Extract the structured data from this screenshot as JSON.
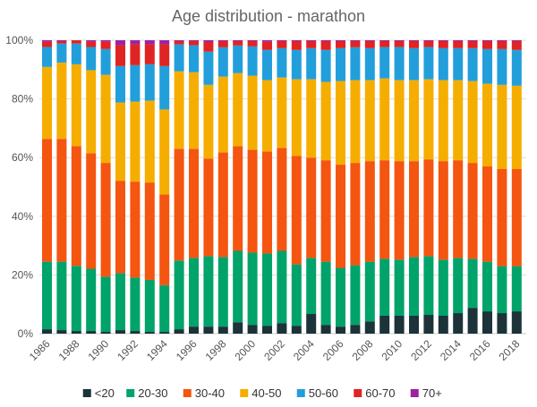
{
  "chart_data": {
    "type": "bar",
    "stacked": true,
    "title": "Age distribution - marathon",
    "xlabel": "",
    "ylabel": "",
    "ylim": [
      0,
      100
    ],
    "y_ticks": [
      "0%",
      "20%",
      "40%",
      "60%",
      "80%",
      "100%"
    ],
    "x_tick_labels": [
      "1986",
      "1988",
      "1990",
      "1992",
      "1994",
      "1996",
      "1998",
      "2000",
      "2002",
      "2004",
      "2006",
      "2008",
      "2010",
      "2012",
      "2014",
      "2016",
      "2018"
    ],
    "grid": "horizontal",
    "legend_position": "bottom",
    "categories": [
      "1986",
      "1987",
      "1988",
      "1989",
      "1990",
      "1991",
      "1992",
      "1993",
      "1994",
      "1995",
      "1996",
      "1997",
      "1998",
      "1999",
      "2000",
      "2001",
      "2002",
      "2003",
      "2004",
      "2005",
      "2006",
      "2007",
      "2008",
      "2009",
      "2010",
      "2011",
      "2012",
      "2013",
      "2014",
      "2015",
      "2016",
      "2017",
      "2018"
    ],
    "series": [
      {
        "name": "<20",
        "color": "#1b3339",
        "values": [
          1.5,
          1.2,
          0.9,
          0.9,
          0.6,
          1.2,
          0.9,
          0.6,
          0.6,
          1.5,
          2.4,
          2.4,
          2.4,
          3.9,
          3.0,
          2.7,
          3.6,
          2.7,
          6.7,
          3.0,
          2.4,
          3.0,
          4.2,
          6.1,
          6.1,
          6.1,
          6.4,
          6.1,
          7.0,
          8.8,
          7.6,
          7.0,
          7.6
        ]
      },
      {
        "name": "20-30",
        "color": "#00a36a",
        "values": [
          23.0,
          23.3,
          22.2,
          21.2,
          18.8,
          19.4,
          18.2,
          17.7,
          15.9,
          23.4,
          23.4,
          24.0,
          23.7,
          24.3,
          24.6,
          24.6,
          24.6,
          20.9,
          19.1,
          21.5,
          20.0,
          20.3,
          20.3,
          19.4,
          19.1,
          20.0,
          20.0,
          19.1,
          18.8,
          16.7,
          16.9,
          16.0,
          15.4
        ]
      },
      {
        "name": "30-40",
        "color": "#f45511",
        "values": [
          41.9,
          41.9,
          40.8,
          39.4,
          38.8,
          31.5,
          32.7,
          33.2,
          30.9,
          38.1,
          37.2,
          33.3,
          35.7,
          35.7,
          35.1,
          34.8,
          35.1,
          37.0,
          34.2,
          34.6,
          35.2,
          34.9,
          34.3,
          33.6,
          33.6,
          32.7,
          33.0,
          33.6,
          33.3,
          32.7,
          32.5,
          33.1,
          33.1
        ]
      },
      {
        "name": "40-50",
        "color": "#f5ae00",
        "values": [
          24.5,
          26.0,
          27.9,
          28.3,
          30.0,
          26.7,
          27.3,
          27.9,
          29.0,
          26.4,
          26.1,
          25.1,
          25.8,
          24.9,
          25.2,
          24.3,
          24.0,
          26.1,
          26.7,
          26.7,
          28.5,
          28.2,
          27.6,
          27.9,
          27.6,
          27.6,
          27.3,
          27.6,
          27.3,
          27.9,
          28.2,
          28.7,
          28.4
        ]
      },
      {
        "name": "50-60",
        "color": "#229fdb",
        "values": [
          6.8,
          6.5,
          7.1,
          7.9,
          8.8,
          12.4,
          12.4,
          12.4,
          14.8,
          9.2,
          9.2,
          11.3,
          10.0,
          9.4,
          10.0,
          10.3,
          10.0,
          10.0,
          10.6,
          10.9,
          11.2,
          11.2,
          10.9,
          10.7,
          11.3,
          10.9,
          11.0,
          10.9,
          10.9,
          11.2,
          11.8,
          12.2,
          12.2
        ]
      },
      {
        "name": "60-70",
        "color": "#e02424",
        "values": [
          1.8,
          0.8,
          1.1,
          1.8,
          2.5,
          7.1,
          7.1,
          6.8,
          7.4,
          1.1,
          1.4,
          3.3,
          2.1,
          1.5,
          1.8,
          2.8,
          2.4,
          3.0,
          2.4,
          3.0,
          2.4,
          2.1,
          2.4,
          2.0,
          2.0,
          2.4,
          2.0,
          2.4,
          2.4,
          2.4,
          2.7,
          2.7,
          3.0
        ]
      },
      {
        "name": "70+",
        "color": "#a020a0",
        "values": [
          0.5,
          0.3,
          0,
          0.5,
          0.5,
          1.7,
          1.4,
          1.4,
          1.4,
          0.3,
          0.3,
          0.6,
          0.3,
          0.3,
          0.3,
          0.5,
          0.3,
          0.3,
          0.3,
          0.3,
          0.3,
          0.3,
          0.3,
          0.3,
          0.3,
          0.3,
          0.3,
          0.3,
          0.3,
          0.3,
          0.3,
          0.3,
          0.3
        ]
      }
    ]
  }
}
